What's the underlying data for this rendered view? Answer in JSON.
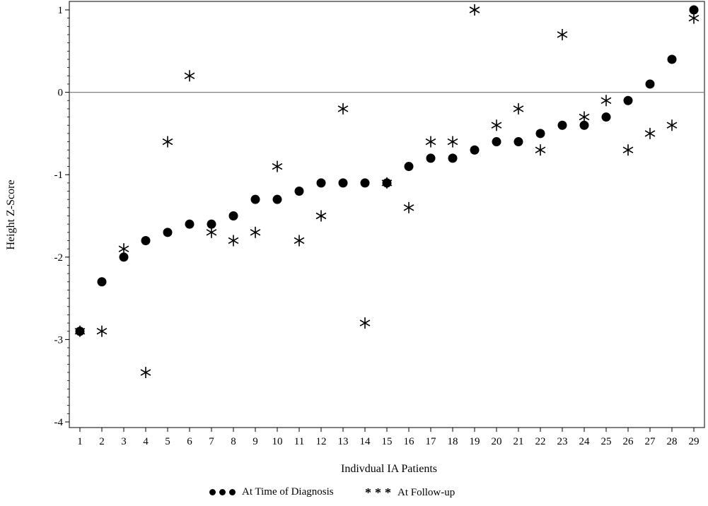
{
  "chart_data": {
    "type": "scatter",
    "xlabel": "Indivdual IA Patients",
    "ylabel": "Height Z-Score",
    "x": [
      1,
      2,
      3,
      4,
      5,
      6,
      7,
      8,
      9,
      10,
      11,
      12,
      13,
      14,
      15,
      16,
      17,
      18,
      19,
      20,
      21,
      22,
      23,
      24,
      25,
      26,
      27,
      28,
      29
    ],
    "xlim": [
      1,
      29
    ],
    "ylim": [
      -4,
      1
    ],
    "yticks": [
      -4,
      -3,
      -2,
      -1,
      0,
      1
    ],
    "reference_line_y": 0,
    "series": [
      {
        "name": "At Time of Diagnosis",
        "marker": "dot",
        "values": [
          -2.9,
          -2.3,
          -2.0,
          -1.8,
          -1.7,
          -1.6,
          -1.6,
          -1.5,
          -1.3,
          -1.3,
          -1.2,
          -1.1,
          -1.1,
          -1.1,
          -1.1,
          -0.9,
          -0.8,
          -0.8,
          -0.7,
          -0.6,
          -0.6,
          -0.5,
          -0.4,
          -0.4,
          -0.3,
          -0.1,
          0.1,
          0.4,
          1.0
        ]
      },
      {
        "name": "At Follow-up",
        "marker": "asterisk",
        "values": [
          -2.9,
          -2.9,
          -1.9,
          -3.4,
          -0.6,
          0.2,
          -1.7,
          -1.8,
          -1.7,
          -0.9,
          -1.8,
          -1.5,
          -0.2,
          -2.8,
          -1.1,
          -1.4,
          -0.6,
          -0.6,
          1.0,
          -0.4,
          -0.2,
          -0.7,
          0.7,
          -0.3,
          -0.1,
          -0.7,
          -0.5,
          -0.4,
          0.9
        ]
      }
    ],
    "legend": {
      "placement": "bottom",
      "items": [
        {
          "symbols": "• • •",
          "label": "At Time of Diagnosis"
        },
        {
          "symbols": "* * *",
          "label": "At Follow-up"
        }
      ]
    },
    "grid": false,
    "colors": {
      "marker": "#000000",
      "axis": "#000000",
      "reference_line": "#808080"
    }
  }
}
